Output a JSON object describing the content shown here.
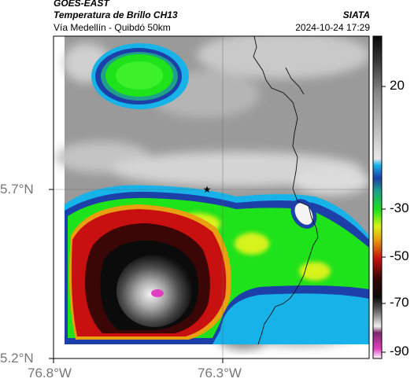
{
  "header": {
    "satellite": "GOES-EAST",
    "product": "Temperatura de Brillo CH13",
    "source": "SIATA",
    "route": "Vía Medellín - Quibdó 50km",
    "datetime": "2024-10-24 17:29"
  },
  "axes": {
    "y_ticks": [
      "5.7°N",
      "5.2°N"
    ],
    "x_ticks": [
      "76.8°W",
      "76.3°W"
    ]
  },
  "colorbar": {
    "ticks": [
      "20",
      "-30",
      "-50",
      "-70",
      "-90"
    ]
  },
  "marker": {
    "name": "star-marker",
    "symbol": "★"
  },
  "colors": {
    "warm_gray": "#9a9a9a",
    "cold_blue": "#1c3fa8",
    "cyan": "#17b3e8",
    "green": "#1ee21a",
    "yellow": "#d8f21a",
    "red": "#c81010",
    "dark_red": "#3a0606",
    "black": "#0b0b0b",
    "magenta": "#e040c0"
  }
}
